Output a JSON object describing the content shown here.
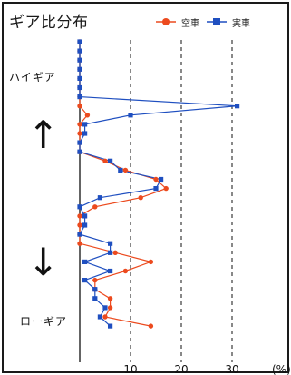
{
  "chart_data": {
    "type": "line",
    "title": "ギア比分布",
    "orientation": "horizontal-values",
    "xlabel": "(%)",
    "xlim": [
      0,
      33
    ],
    "xticks": [
      10,
      20,
      30
    ],
    "xtick_labels": [
      "10",
      "20",
      "30"
    ],
    "xunit_label": "(%)",
    "grid": "dashed vertical at ticks",
    "legend_position": "top-right",
    "y_top_label": "ハイギア",
    "y_bottom_label": "ローギア",
    "series": [
      {
        "name": "空車",
        "color": "#ec4a1e",
        "marker": "circle",
        "values": [
          0,
          0,
          0,
          0,
          0,
          0,
          0,
          0,
          1.5,
          0,
          0,
          0,
          0,
          5,
          9,
          15,
          17,
          12,
          3,
          0,
          0,
          0,
          0,
          7,
          14,
          9,
          3,
          3,
          6,
          6,
          5,
          14
        ]
      },
      {
        "name": "実車",
        "color": "#1f4fc0",
        "marker": "square",
        "values": [
          0,
          0,
          0,
          0,
          0,
          0,
          0,
          31,
          10,
          1,
          1,
          0,
          0,
          6,
          8,
          16,
          15,
          4,
          0,
          1,
          1,
          0,
          6,
          6,
          1,
          6,
          1,
          3,
          3,
          5,
          4,
          6
        ]
      }
    ]
  }
}
